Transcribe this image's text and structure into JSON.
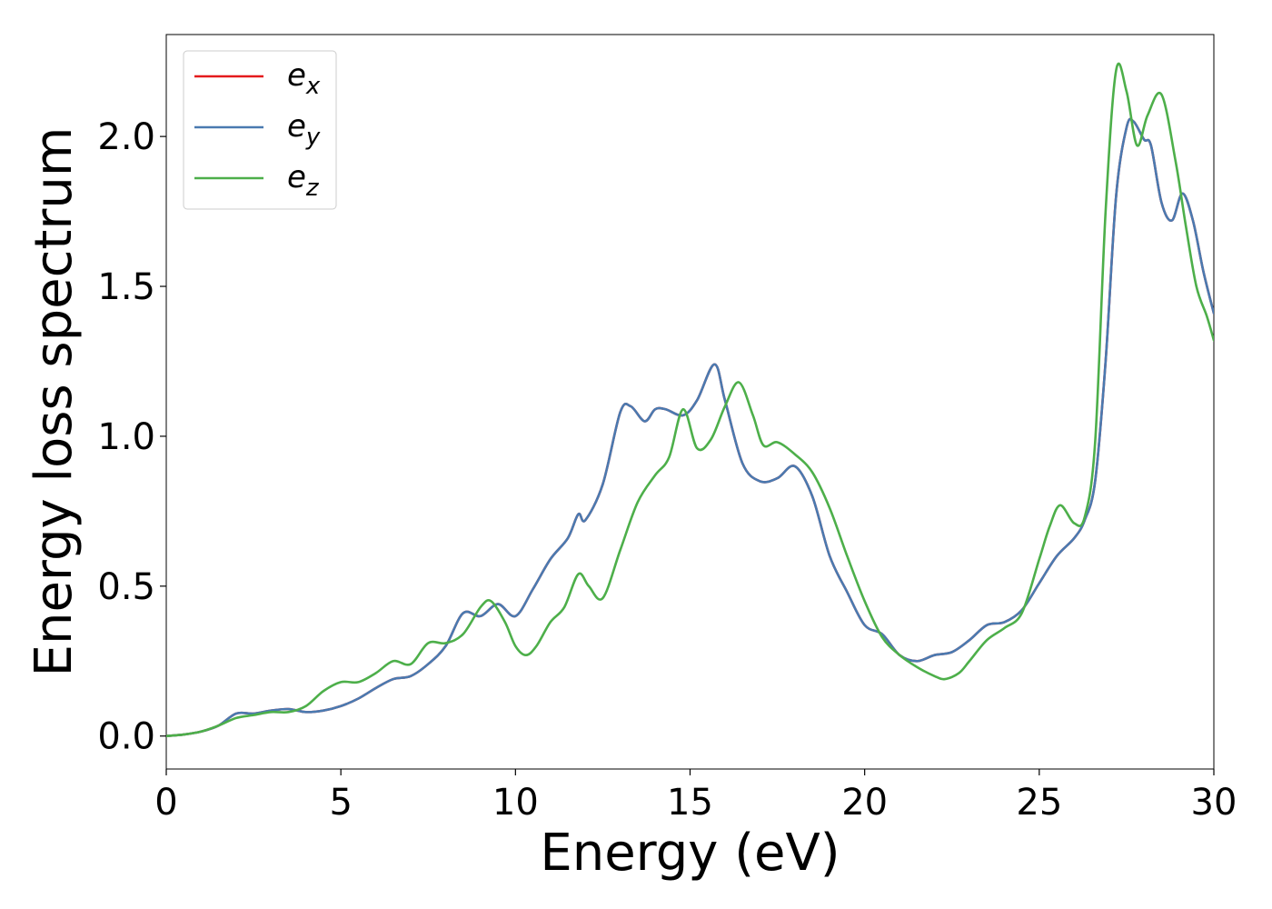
{
  "chart_data": {
    "type": "line",
    "title": "",
    "xlabel": "Energy (eV)",
    "ylabel": "Energy loss spectrum",
    "xlim": [
      0,
      30
    ],
    "ylim": [
      -0.11,
      2.34
    ],
    "xticks": [
      0,
      5,
      10,
      15,
      20,
      25,
      30
    ],
    "xtick_labels": [
      "0",
      "5",
      "10",
      "15",
      "20",
      "25",
      "30"
    ],
    "yticks": [
      0,
      0.5,
      1.0,
      1.5,
      2.0
    ],
    "ytick_labels": [
      "0.0",
      "0.5",
      "1.0",
      "1.5",
      "2.0"
    ],
    "grid": false,
    "legend_position": "top-left",
    "series": [
      {
        "name": "e_x",
        "label_base": "e",
        "label_sub": "x",
        "color": "#e41a1c",
        "x": [
          0,
          0.5,
          1,
          1.5,
          2,
          2.5,
          3,
          3.5,
          4,
          4.5,
          5,
          5.5,
          6,
          6.5,
          7,
          7.5,
          8,
          8.5,
          9,
          9.5,
          10,
          10.5,
          11,
          11.5,
          11.8,
          12,
          12.5,
          13,
          13.3,
          13.7,
          14,
          14.3,
          14.8,
          15.2,
          15.7,
          16,
          16.5,
          17,
          17.5,
          18,
          18.5,
          19,
          19.5,
          20,
          20.5,
          21,
          21.5,
          22,
          22.5,
          23,
          23.5,
          24,
          24.5,
          25,
          25.5,
          26,
          26.3,
          26.6,
          26.9,
          27.2,
          27.5,
          27.7,
          28,
          28.2,
          28.5,
          28.8,
          29.1,
          29.4,
          29.7,
          30
        ],
        "y": [
          0,
          0.005,
          0.015,
          0.035,
          0.075,
          0.075,
          0.085,
          0.09,
          0.08,
          0.085,
          0.1,
          0.125,
          0.16,
          0.19,
          0.2,
          0.24,
          0.3,
          0.41,
          0.4,
          0.44,
          0.4,
          0.49,
          0.59,
          0.66,
          0.74,
          0.72,
          0.84,
          1.08,
          1.1,
          1.05,
          1.09,
          1.09,
          1.07,
          1.12,
          1.24,
          1.12,
          0.91,
          0.85,
          0.86,
          0.9,
          0.8,
          0.6,
          0.48,
          0.37,
          0.34,
          0.27,
          0.25,
          0.27,
          0.28,
          0.32,
          0.37,
          0.38,
          0.42,
          0.51,
          0.6,
          0.66,
          0.72,
          0.85,
          1.25,
          1.8,
          2.03,
          2.05,
          1.99,
          1.97,
          1.78,
          1.72,
          1.81,
          1.72,
          1.55,
          1.41
        ]
      },
      {
        "name": "e_y",
        "label_base": "e",
        "label_sub": "y",
        "color": "#4a7ab0",
        "x": [
          0,
          0.5,
          1,
          1.5,
          2,
          2.5,
          3,
          3.5,
          4,
          4.5,
          5,
          5.5,
          6,
          6.5,
          7,
          7.5,
          8,
          8.5,
          9,
          9.5,
          10,
          10.5,
          11,
          11.5,
          11.8,
          12,
          12.5,
          13,
          13.3,
          13.7,
          14,
          14.3,
          14.8,
          15.2,
          15.7,
          16,
          16.5,
          17,
          17.5,
          18,
          18.5,
          19,
          19.5,
          20,
          20.5,
          21,
          21.5,
          22,
          22.5,
          23,
          23.5,
          24,
          24.5,
          25,
          25.5,
          26,
          26.3,
          26.6,
          26.9,
          27.2,
          27.5,
          27.7,
          28,
          28.2,
          28.5,
          28.8,
          29.1,
          29.4,
          29.7,
          30
        ],
        "y": [
          0,
          0.005,
          0.015,
          0.035,
          0.075,
          0.075,
          0.085,
          0.09,
          0.08,
          0.085,
          0.1,
          0.125,
          0.16,
          0.19,
          0.2,
          0.24,
          0.3,
          0.41,
          0.4,
          0.44,
          0.4,
          0.49,
          0.59,
          0.66,
          0.74,
          0.72,
          0.84,
          1.08,
          1.1,
          1.05,
          1.09,
          1.09,
          1.07,
          1.12,
          1.24,
          1.12,
          0.91,
          0.85,
          0.86,
          0.9,
          0.8,
          0.6,
          0.48,
          0.37,
          0.34,
          0.27,
          0.25,
          0.27,
          0.28,
          0.32,
          0.37,
          0.38,
          0.42,
          0.51,
          0.6,
          0.66,
          0.72,
          0.85,
          1.25,
          1.8,
          2.03,
          2.05,
          1.99,
          1.97,
          1.78,
          1.72,
          1.81,
          1.72,
          1.55,
          1.41
        ]
      },
      {
        "name": "e_z",
        "label_base": "e",
        "label_sub": "z",
        "color": "#4daf4a",
        "x": [
          0,
          0.5,
          1,
          1.5,
          2,
          2.5,
          3,
          3.5,
          4,
          4.5,
          5,
          5.5,
          6,
          6.5,
          7,
          7.5,
          8,
          8.5,
          9,
          9.3,
          9.7,
          10,
          10.3,
          10.6,
          11,
          11.4,
          11.8,
          12.1,
          12.5,
          13,
          13.5,
          14,
          14.4,
          14.8,
          15.2,
          15.6,
          16,
          16.4,
          16.8,
          17.1,
          17.5,
          18,
          18.5,
          19,
          19.5,
          20,
          20.5,
          21,
          21.5,
          22,
          22.3,
          22.7,
          23,
          23.5,
          24,
          24.5,
          25,
          25.3,
          25.6,
          26,
          26.3,
          26.6,
          26.9,
          27.2,
          27.5,
          27.8,
          28.1,
          28.5,
          28.9,
          29.2,
          29.5,
          29.8,
          30
        ],
        "y": [
          0,
          0.005,
          0.015,
          0.035,
          0.06,
          0.07,
          0.08,
          0.08,
          0.1,
          0.15,
          0.18,
          0.18,
          0.21,
          0.25,
          0.24,
          0.31,
          0.31,
          0.34,
          0.43,
          0.45,
          0.38,
          0.3,
          0.27,
          0.3,
          0.38,
          0.43,
          0.54,
          0.5,
          0.46,
          0.62,
          0.78,
          0.87,
          0.93,
          1.09,
          0.96,
          0.99,
          1.1,
          1.18,
          1.07,
          0.97,
          0.98,
          0.94,
          0.88,
          0.76,
          0.6,
          0.45,
          0.33,
          0.27,
          0.23,
          0.2,
          0.19,
          0.21,
          0.25,
          0.32,
          0.36,
          0.41,
          0.59,
          0.7,
          0.77,
          0.71,
          0.73,
          0.98,
          1.75,
          2.22,
          2.15,
          1.97,
          2.07,
          2.14,
          1.92,
          1.7,
          1.5,
          1.4,
          1.32
        ]
      }
    ]
  }
}
